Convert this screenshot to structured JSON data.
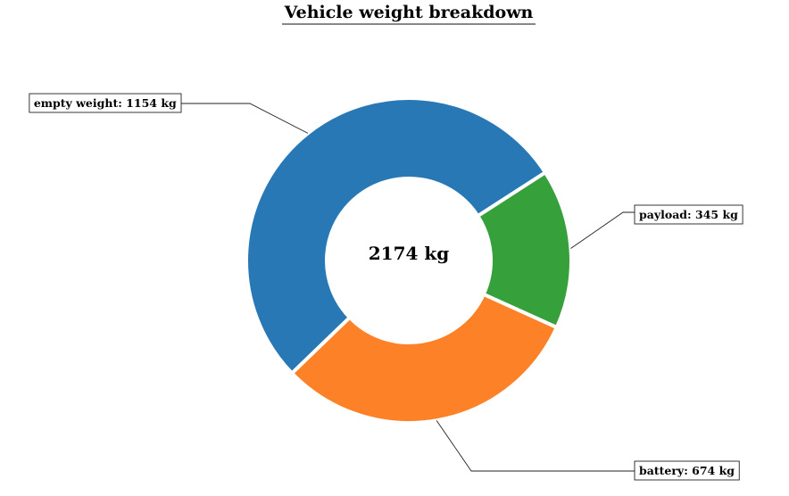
{
  "chart_data": {
    "type": "pie",
    "donut": true,
    "title": "Vehicle weight breakdown",
    "center_label": "2174 kg",
    "unit": "kg",
    "slices": [
      {
        "label": "empty weight",
        "value": 1154,
        "color": "#2878b5",
        "label_text": "empty weight: 1154 kg"
      },
      {
        "label": "payload",
        "value": 345,
        "color": "#36a03a",
        "label_text": "payload: 345 kg"
      },
      {
        "label": "battery",
        "value": 674,
        "color": "#fd8227",
        "label_text": "battery: 674 kg"
      }
    ],
    "legend": "none"
  }
}
